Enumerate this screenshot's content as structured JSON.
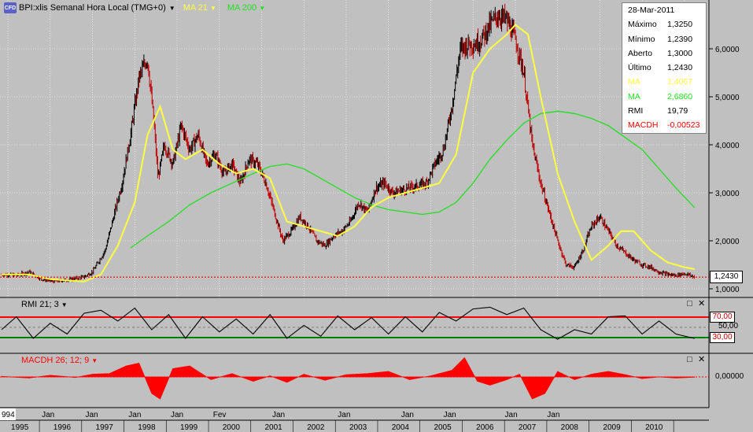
{
  "header": {
    "symbol": "BPI:xlis Semanal Hora Local (TMG+0)",
    "ma21_label": "MA 21",
    "ma200_label": "MA 200",
    "logo_text": "CFD",
    "colors": {
      "ma21": "#ffff40",
      "ma200": "#20e020",
      "bull": "#000000",
      "bear": "#c00000",
      "macd": "#ff0000",
      "rmi": "#000000"
    }
  },
  "info_panel": {
    "date": "28-Mar-2011",
    "rows": [
      {
        "label": "Máximo",
        "value": "1,3250",
        "color": "#000000"
      },
      {
        "label": "Mínimo",
        "value": "1,2390",
        "color": "#000000"
      },
      {
        "label": "Aberto",
        "value": "1,3000",
        "color": "#000000"
      },
      {
        "label": "Último",
        "value": "1,2430",
        "color": "#000000"
      },
      {
        "label": "MA",
        "value": "1,4067",
        "color": "#ffff40"
      },
      {
        "label": "MA",
        "value": "2,6860",
        "color": "#20e020"
      },
      {
        "label": "RMI",
        "value": "19,79",
        "color": "#000000"
      },
      {
        "label": "MACDH",
        "value": "-0,00523",
        "color": "#ff0000"
      }
    ]
  },
  "price_marker": "1,2430",
  "rmi_panel": {
    "label": "RMI 21; 3",
    "upper": "70,00",
    "mid": "50,00",
    "lower": "30,00"
  },
  "macd_panel": {
    "label": "MACDH 26; 12; 9",
    "zero": "0,00000"
  },
  "x_axis": {
    "top_row": [
      "994",
      "Jan",
      "Jan",
      "Jan",
      "Jan",
      "Fev",
      "Jan",
      "Jan",
      "Jan",
      "Jan",
      "Jan",
      "Jan"
    ],
    "bottom_row": [
      "1995",
      "1996",
      "1997",
      "1998",
      "1999",
      "2000",
      "2001",
      "2002",
      "2003",
      "2004",
      "2005",
      "2006",
      "2007",
      "2008",
      "2009",
      "2010"
    ]
  },
  "window_buttons": {
    "restore": "□",
    "close": "✕"
  },
  "chart_data": {
    "type": "line",
    "title": "BPI:xlis Semanal",
    "price_axis": {
      "ticks": [
        "1,0000",
        "2,0000",
        "3,0000",
        "4,0000",
        "5,0000",
        "6,0000"
      ],
      "ylim": [
        0.75,
        6.95
      ]
    },
    "x_range": [
      1994.85,
      2011.3
    ],
    "price": {
      "x": [
        1994.85,
        1995.2,
        1995.5,
        1995.8,
        1996.1,
        1996.5,
        1996.8,
        1997.0,
        1997.3,
        1997.5,
        1997.7,
        1997.9,
        1998.1,
        1998.3,
        1998.45,
        1998.55,
        1998.7,
        1998.9,
        1999.1,
        1999.3,
        1999.5,
        1999.7,
        1999.9,
        2000.1,
        2000.3,
        2000.5,
        2000.7,
        2000.9,
        2001.1,
        2001.3,
        2001.5,
        2001.7,
        2001.9,
        2002.1,
        2002.3,
        2002.5,
        2002.7,
        2002.9,
        2003.1,
        2003.3,
        2003.5,
        2003.7,
        2003.9,
        2004.1,
        2004.3,
        2004.5,
        2004.7,
        2004.9,
        2005.1,
        2005.3,
        2005.5,
        2005.7,
        2005.9,
        2006.05,
        2006.2,
        2006.4,
        2006.6,
        2006.8,
        2007.0,
        2007.2,
        2007.4,
        2007.6,
        2007.8,
        2008.0,
        2008.2,
        2008.4,
        2008.6,
        2008.8,
        2009.0,
        2009.2,
        2009.4,
        2009.6,
        2009.8,
        2010.0,
        2010.2,
        2010.4,
        2010.6,
        2010.8,
        2011.0,
        2011.24
      ],
      "y": [
        1.3,
        1.28,
        1.35,
        1.2,
        1.15,
        1.2,
        1.25,
        1.35,
        1.8,
        2.5,
        3.2,
        4.2,
        5.4,
        5.8,
        4.5,
        3.3,
        4.0,
        3.6,
        4.4,
        3.9,
        4.2,
        3.6,
        3.8,
        3.4,
        3.6,
        3.2,
        3.7,
        3.6,
        3.2,
        2.6,
        2.0,
        2.2,
        2.5,
        2.3,
        2.0,
        1.9,
        2.1,
        2.2,
        2.4,
        2.8,
        2.6,
        3.1,
        3.2,
        3.0,
        3.05,
        3.1,
        3.15,
        3.2,
        3.6,
        3.9,
        4.8,
        6.0,
        6.1,
        6.1,
        6.2,
        6.5,
        6.7,
        6.6,
        6.2,
        5.5,
        4.0,
        3.2,
        2.6,
        2.0,
        1.5,
        1.45,
        1.8,
        2.3,
        2.5,
        2.2,
        1.9,
        1.75,
        1.6,
        1.5,
        1.45,
        1.35,
        1.3,
        1.28,
        1.32,
        1.243
      ]
    },
    "ma21": {
      "x": [
        1994.85,
        1995.5,
        1996.0,
        1996.8,
        1997.2,
        1997.6,
        1998.0,
        1998.3,
        1998.6,
        1998.9,
        1999.2,
        1999.6,
        2000.0,
        2000.4,
        2000.8,
        2001.2,
        2001.6,
        2002.0,
        2002.4,
        2002.8,
        2003.2,
        2003.6,
        2004.0,
        2004.4,
        2004.8,
        2005.2,
        2005.6,
        2006.0,
        2006.4,
        2006.8,
        2007.0,
        2007.3,
        2007.6,
        2008.0,
        2008.4,
        2008.8,
        2009.2,
        2009.5,
        2009.8,
        2010.2,
        2010.6,
        2011.0,
        2011.24
      ],
      "y": [
        1.3,
        1.3,
        1.2,
        1.15,
        1.3,
        1.9,
        2.8,
        4.2,
        4.8,
        3.9,
        3.7,
        3.9,
        3.6,
        3.4,
        3.5,
        3.3,
        2.4,
        2.3,
        2.2,
        2.1,
        2.3,
        2.7,
        2.9,
        3.0,
        3.1,
        3.2,
        3.8,
        5.5,
        6.0,
        6.3,
        6.5,
        6.3,
        5.0,
        3.4,
        2.4,
        1.6,
        1.9,
        2.2,
        2.2,
        1.8,
        1.55,
        1.45,
        1.41
      ]
    },
    "ma200": {
      "x": [
        1997.9,
        1998.3,
        1998.8,
        1999.3,
        1999.8,
        2000.3,
        2000.8,
        2001.2,
        2001.6,
        2002.0,
        2002.4,
        2002.8,
        2003.2,
        2003.6,
        2004.0,
        2004.4,
        2004.8,
        2005.2,
        2005.6,
        2006.0,
        2006.4,
        2006.8,
        2007.2,
        2007.6,
        2008.0,
        2008.4,
        2008.8,
        2009.2,
        2009.6,
        2010.0,
        2010.4,
        2010.8,
        2011.24
      ],
      "y": [
        1.85,
        2.1,
        2.4,
        2.75,
        3.0,
        3.2,
        3.4,
        3.55,
        3.6,
        3.5,
        3.3,
        3.1,
        2.9,
        2.75,
        2.65,
        2.6,
        2.55,
        2.6,
        2.8,
        3.2,
        3.7,
        4.1,
        4.45,
        4.65,
        4.7,
        4.65,
        4.55,
        4.4,
        4.15,
        3.9,
        3.5,
        3.1,
        2.69
      ]
    },
    "rmi": {
      "x": [
        1994.85,
        1995.2,
        1995.6,
        1996.0,
        1996.4,
        1996.8,
        1997.2,
        1997.6,
        1998.0,
        1998.4,
        1998.8,
        1999.2,
        1999.6,
        2000.0,
        2000.4,
        2000.8,
        2001.2,
        2001.6,
        2002.0,
        2002.4,
        2002.8,
        2003.2,
        2003.6,
        2004.0,
        2004.4,
        2004.8,
        2005.2,
        2005.6,
        2006.0,
        2006.4,
        2006.8,
        2007.2,
        2007.6,
        2008.0,
        2008.4,
        2008.8,
        2009.2,
        2009.6,
        2010.0,
        2010.4,
        2010.8,
        2011.24
      ],
      "y": [
        40,
        70,
        20,
        55,
        30,
        78,
        85,
        60,
        90,
        40,
        75,
        20,
        70,
        35,
        65,
        30,
        75,
        20,
        50,
        25,
        72,
        40,
        68,
        30,
        70,
        35,
        80,
        60,
        88,
        92,
        75,
        90,
        40,
        18,
        40,
        30,
        70,
        72,
        30,
        60,
        30,
        19.79
      ]
    },
    "macdh": {
      "x": [
        1994.85,
        1995.5,
        1996.0,
        1996.6,
        1997.0,
        1997.4,
        1997.8,
        1998.1,
        1998.4,
        1998.6,
        1998.9,
        1999.3,
        1999.8,
        2000.3,
        2000.8,
        2001.2,
        2001.6,
        2002.0,
        2002.5,
        2003.0,
        2003.5,
        2004.0,
        2004.5,
        2005.0,
        2005.5,
        2005.8,
        2006.1,
        2006.4,
        2006.8,
        2007.1,
        2007.4,
        2007.7,
        2008.0,
        2008.4,
        2008.8,
        2009.2,
        2009.6,
        2010.0,
        2010.4,
        2010.8,
        2011.24
      ],
      "y": [
        0.01,
        -0.02,
        0.03,
        -0.01,
        0.05,
        0.06,
        0.2,
        0.25,
        -0.3,
        -0.4,
        0.15,
        0.2,
        -0.05,
        0.06,
        -0.08,
        0.02,
        -0.1,
        0.05,
        -0.06,
        0.04,
        0.06,
        0.1,
        -0.05,
        0.02,
        0.12,
        0.35,
        -0.08,
        -0.15,
        -0.05,
        0.05,
        -0.4,
        -0.3,
        0.1,
        -0.05,
        0.05,
        0.1,
        0.04,
        -0.03,
        0.0,
        -0.02,
        -0.00523
      ]
    }
  }
}
